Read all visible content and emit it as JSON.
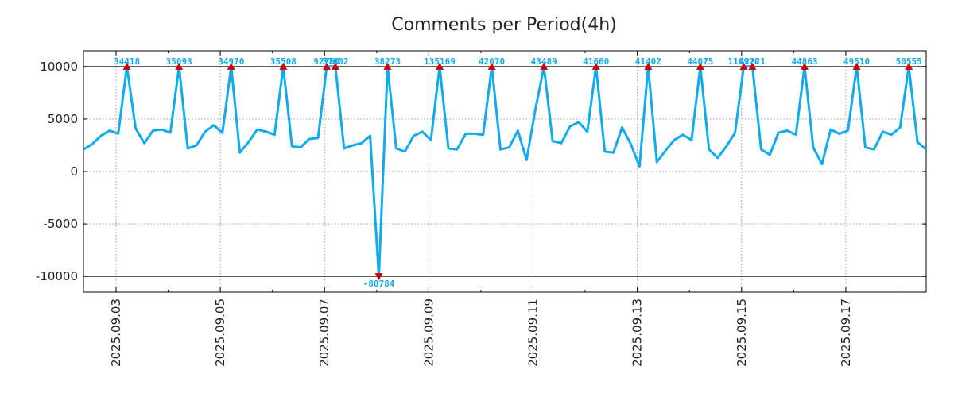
{
  "chart_data": {
    "type": "line",
    "title": "Comments per Period(4h)",
    "xlabel": "",
    "ylabel": "",
    "ylim": [
      -11500,
      11500
    ],
    "yticks": [
      10000,
      5000,
      0,
      -5000,
      -10000
    ],
    "ytick_labels": [
      "10000",
      "5000",
      "0",
      "-5000",
      "-10000"
    ],
    "clip_value_high": 10000,
    "clip_value_low": -10000,
    "xlim": [
      0,
      97
    ],
    "xticks": [
      {
        "x": 3.75,
        "label": "2025.09.03"
      },
      {
        "x": 15.75,
        "label": "2025.09.05"
      },
      {
        "x": 27.75,
        "label": "2025.09.07"
      },
      {
        "x": 39.75,
        "label": "2025.09.09"
      },
      {
        "x": 51.75,
        "label": "2025.09.11"
      },
      {
        "x": 63.75,
        "label": "2025.09.13"
      },
      {
        "x": 75.75,
        "label": "2025.09.15"
      },
      {
        "x": 87.75,
        "label": "2025.09.17"
      }
    ],
    "minor_xticks": [
      9.75,
      21.75,
      33.75,
      45.75,
      57.75,
      69.75,
      81.75,
      93.75
    ],
    "grid": true,
    "line_color": "#11aaee",
    "marker_color": "#cc0000",
    "series": [
      {
        "name": "comments",
        "values": [
          2100,
          2600,
          3400,
          3900,
          3600,
          10000,
          4100,
          2700,
          3900,
          4000,
          3700,
          10000,
          2200,
          2500,
          3800,
          4400,
          3700,
          10000,
          1800,
          2800,
          4000,
          3800,
          3500,
          10000,
          2400,
          2300,
          3100,
          3200,
          10000,
          10000,
          2200,
          2500,
          2700,
          3400,
          -10000,
          10000,
          2200,
          1900,
          3400,
          3800,
          3000,
          10000,
          2200,
          2100,
          3600,
          3600,
          3500,
          10000,
          2100,
          2300,
          3900,
          1100,
          5800,
          10000,
          2900,
          2700,
          4300,
          4700,
          3800,
          10000,
          1900,
          1800,
          4200,
          2600,
          500,
          10000,
          900,
          2000,
          3000,
          3500,
          3000,
          10000,
          2100,
          1300,
          2400,
          3700,
          10000,
          10000,
          2100,
          1600,
          3700,
          3900,
          3500,
          10000,
          2300,
          700,
          4000,
          3600,
          3900,
          10000,
          2300,
          2100,
          3800,
          3500,
          4200,
          10000,
          2800,
          2100
        ]
      }
    ],
    "annotations": [
      {
        "x": 5,
        "y": 10000,
        "label": "34418",
        "dir": "up"
      },
      {
        "x": 11,
        "y": 10000,
        "label": "35093",
        "dir": "up"
      },
      {
        "x": 17,
        "y": 10000,
        "label": "34970",
        "dir": "up"
      },
      {
        "x": 23,
        "y": 10000,
        "label": "35508",
        "dir": "up"
      },
      {
        "x": 28,
        "y": 10000,
        "label": "92760",
        "dir": "up"
      },
      {
        "x": 29,
        "y": 10000,
        "label": "37602",
        "dir": "up"
      },
      {
        "x": 34,
        "y": -10000,
        "label": "-80784",
        "dir": "down"
      },
      {
        "x": 35,
        "y": 10000,
        "label": "38273",
        "dir": "up"
      },
      {
        "x": 41,
        "y": 10000,
        "label": "135169",
        "dir": "up"
      },
      {
        "x": 47,
        "y": 10000,
        "label": "42070",
        "dir": "up"
      },
      {
        "x": 53,
        "y": 10000,
        "label": "43489",
        "dir": "up"
      },
      {
        "x": 59,
        "y": 10000,
        "label": "41660",
        "dir": "up"
      },
      {
        "x": 65,
        "y": 10000,
        "label": "41402",
        "dir": "up"
      },
      {
        "x": 71,
        "y": 10000,
        "label": "44075",
        "dir": "up"
      },
      {
        "x": 76,
        "y": 10000,
        "label": "110970",
        "dir": "up"
      },
      {
        "x": 77,
        "y": 10000,
        "label": "42221",
        "dir": "up"
      },
      {
        "x": 83,
        "y": 10000,
        "label": "44863",
        "dir": "up"
      },
      {
        "x": 89,
        "y": 10000,
        "label": "49510",
        "dir": "up"
      },
      {
        "x": 95,
        "y": 10000,
        "label": "50555",
        "dir": "up"
      }
    ]
  }
}
